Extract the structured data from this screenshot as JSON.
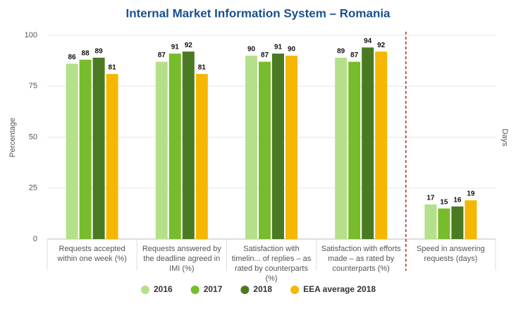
{
  "chart_data": {
    "type": "bar",
    "title": "Internal Market Information System – Romania",
    "ylabel": "Percentage",
    "y2label": "Days",
    "categories": [
      "Requests accepted within one week (%)",
      "Requests answered by the deadline agreed in IMI (%)",
      "Satisfaction with timelin... of replies – as rated by counterparts (%)",
      "Satisfaction with efforts made – as rated by counterparts (%)",
      "Speed in answering requests (days)"
    ],
    "series": [
      {
        "name": "2016",
        "color": "#b5e08a",
        "values": [
          86,
          87,
          90,
          89,
          17
        ]
      },
      {
        "name": "2017",
        "color": "#77bc2a",
        "values": [
          88,
          91,
          87,
          87,
          15
        ]
      },
      {
        "name": "2018",
        "color": "#4a7a22",
        "values": [
          89,
          92,
          91,
          94,
          16
        ]
      },
      {
        "name": "EEA average 2018",
        "color": "#f5b700",
        "values": [
          81,
          81,
          90,
          92,
          19
        ]
      }
    ],
    "ylim": [
      0,
      100
    ],
    "yticks": [
      0,
      25,
      50,
      75,
      100
    ],
    "y2lim": [
      0,
      100
    ],
    "y2_from_category": 4,
    "divider_color": "#b0282d",
    "grid": true,
    "legend": "bottom"
  }
}
